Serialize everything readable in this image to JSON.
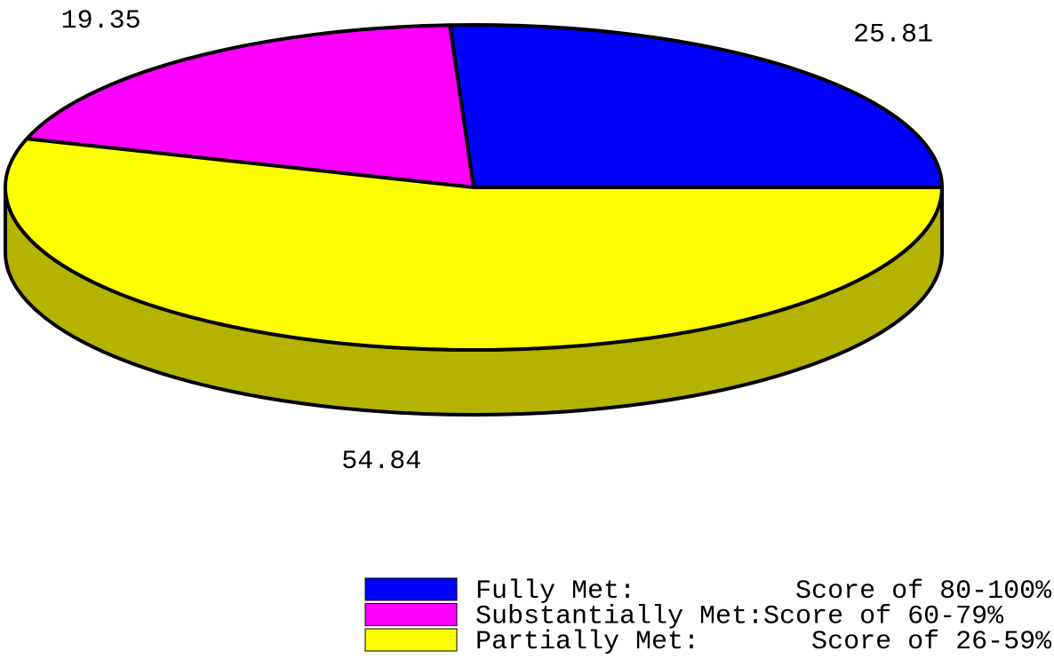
{
  "chart_data": {
    "type": "pie",
    "3d": true,
    "categories": [
      "Fully Met:          Score of 80-100%",
      "Substantially Met:Score of 60-79%",
      "Partially Met:       Score of 26-59%"
    ],
    "values": [
      25.81,
      19.35,
      54.84
    ],
    "colors": [
      "#0000ff",
      "#ff00ff",
      "#ffff00"
    ],
    "legend": "bottom-right"
  }
}
